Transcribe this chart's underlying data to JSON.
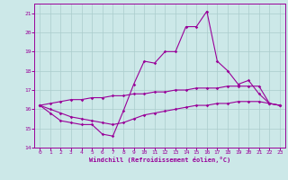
{
  "title": "",
  "xlabel": "Windchill (Refroidissement éolien,°C)",
  "ylabel": "",
  "background_color": "#cce8e8",
  "line_color": "#990099",
  "grid_color": "#aacccc",
  "xlim": [
    -0.5,
    23.5
  ],
  "ylim": [
    14,
    21.5
  ],
  "yticks": [
    14,
    15,
    16,
    17,
    18,
    19,
    20,
    21
  ],
  "xticks": [
    0,
    1,
    2,
    3,
    4,
    5,
    6,
    7,
    8,
    9,
    10,
    11,
    12,
    13,
    14,
    15,
    16,
    17,
    18,
    19,
    20,
    21,
    22,
    23
  ],
  "hours": [
    0,
    1,
    2,
    3,
    4,
    5,
    6,
    7,
    8,
    9,
    10,
    11,
    12,
    13,
    14,
    15,
    16,
    17,
    18,
    19,
    20,
    21,
    22,
    23
  ],
  "temp_line1": [
    16.2,
    15.8,
    15.4,
    15.3,
    15.2,
    15.2,
    14.7,
    14.6,
    15.9,
    17.3,
    18.5,
    18.4,
    19.0,
    19.0,
    20.3,
    20.3,
    21.1,
    18.5,
    18.0,
    17.3,
    17.5,
    16.8,
    16.3,
    16.2
  ],
  "temp_line2": [
    16.2,
    16.3,
    16.4,
    16.5,
    16.5,
    16.6,
    16.6,
    16.7,
    16.7,
    16.8,
    16.8,
    16.9,
    16.9,
    17.0,
    17.0,
    17.1,
    17.1,
    17.1,
    17.2,
    17.2,
    17.2,
    17.2,
    16.3,
    16.2
  ],
  "temp_line3": [
    16.2,
    16.0,
    15.8,
    15.6,
    15.5,
    15.4,
    15.3,
    15.2,
    15.3,
    15.5,
    15.7,
    15.8,
    15.9,
    16.0,
    16.1,
    16.2,
    16.2,
    16.3,
    16.3,
    16.4,
    16.4,
    16.4,
    16.3,
    16.2
  ]
}
